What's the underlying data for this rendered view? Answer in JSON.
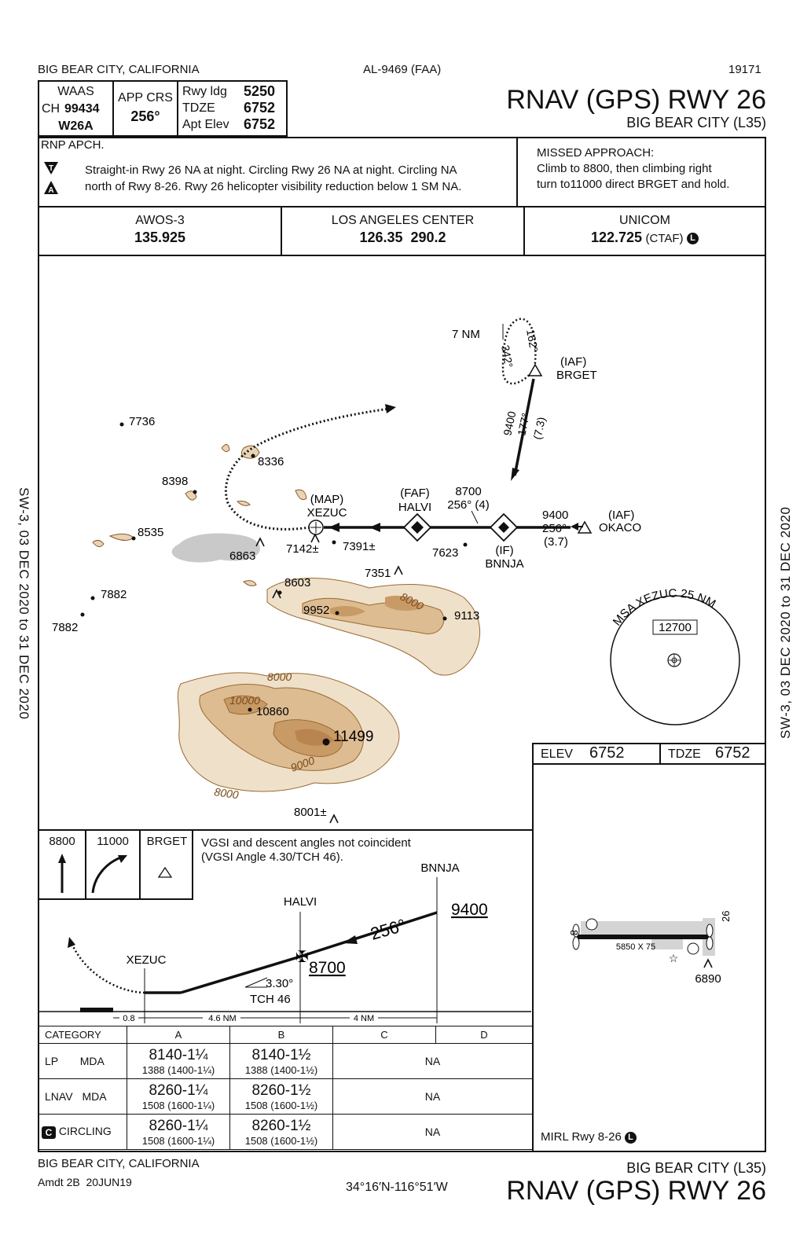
{
  "header": {
    "city": "BIG BEAR CITY, CALIFORNIA",
    "doc_id": "AL-9469 (FAA)",
    "cycle": "19171",
    "procedure": "RNAV (GPS) RWY 26",
    "airport": "BIG BEAR CITY (L35)"
  },
  "briefing": {
    "waas_label": "WAAS",
    "ch_label": "CH",
    "ch_value": "99434",
    "waas_id": "W26A",
    "app_crs_label": "APP CRS",
    "app_crs_value": "256°",
    "rwy_ldg_label": "Rwy ldg",
    "rwy_ldg_value": "5250",
    "tdze_label": "TDZE",
    "tdze_value": "6752",
    "apt_elev_label": "Apt Elev",
    "apt_elev_value": "6752",
    "rnp_apch": "RNP APCH.",
    "notes_line1": "Straight-in Rwy 26 NA at night.  Circling Rwy 26 NA at night.  Circling NA",
    "notes_line2": "north of Rwy 8-26.  Rwy 26 helicopter visibility reduction below 1 SM NA.",
    "missed_title": "MISSED APPROACH:",
    "missed_line1": "Climb to 8800, then climbing right",
    "missed_line2": "turn to11000 direct BRGET and hold."
  },
  "comms": [
    {
      "name": "AWOS-3",
      "freq": "135.925",
      "suffix": ""
    },
    {
      "name": "LOS ANGELES CENTER",
      "freq": "126.35  290.2",
      "suffix": ""
    },
    {
      "name": "UNICOM",
      "freq": "122.725",
      "suffix": "(CTAF)"
    }
  ],
  "planview": {
    "hold_dist": "7 NM",
    "hold_out": "162°",
    "hold_in": "342°",
    "brget_role": "(IAF)",
    "brget_name": "BRGET",
    "brget_alt": "9400",
    "brget_crs": "177°",
    "brget_dist": "(7.3)",
    "okaco_role": "(IAF)",
    "okaco_name": "OKACO",
    "okaco_alt": "9400",
    "okaco_crs": "256°",
    "okaco_dist": "(3.7)",
    "faf_role": "(FAF)",
    "faf_name": "HALVI",
    "faf_alt": "8700",
    "faf_crs": "256° (4)",
    "if_role": "(IF)",
    "if_name": "BNNJA",
    "map_role": "(MAP)",
    "map_name": "XEZUC",
    "msa_label": "MSA XEZUC 25 NM",
    "msa_alt": "12700",
    "elevations": [
      "7736",
      "8336",
      "8398",
      "8535",
      "6863",
      "7142±",
      "7391±",
      "7623",
      "7351",
      "8603",
      "9952",
      "9113",
      "7882",
      "7882",
      "10860",
      "11499",
      "8001±"
    ],
    "contours": [
      "8000",
      "8000",
      "10000",
      "9000",
      "8000"
    ]
  },
  "profile": {
    "missed_icons": [
      "8800",
      "11000",
      "BRGET"
    ],
    "vgsi_line1": "VGSI and descent angles not coincident",
    "vgsi_line2": "(VGSI Angle 4.30/TCH 46).",
    "bnnja": "BNNJA",
    "bnnja_alt": "9400",
    "halvi": "HALVI",
    "halvi_alt": "8700",
    "xezuc": "XEZUC",
    "crs": "256°",
    "gp": "3.30°",
    "tch": "TCH 46",
    "dist1": "0.8",
    "dist2": "4.6 NM",
    "dist3": "4 NM"
  },
  "airport_sketch": {
    "elev_label": "ELEV",
    "elev_value": "6752",
    "tdze_label": "TDZE",
    "tdze_value": "6752",
    "rwy_left": "8",
    "rwy_right": "26",
    "rwy_dims": "5850 X 75",
    "obstacle": "6890",
    "lighting": "MIRL Rwy 8-26"
  },
  "minimums": {
    "headers": [
      "CATEGORY",
      "A",
      "B",
      "C",
      "D"
    ],
    "rows": [
      {
        "label": "LP",
        "type": "MDA",
        "a_main": "8140-1¼",
        "a_sub": "1388 (1400-1¼)",
        "b_main": "8140-1½",
        "b_sub": "1388 (1400-1½)",
        "cd": "NA"
      },
      {
        "label": "LNAV",
        "type": "MDA",
        "a_main": "8260-1¼",
        "a_sub": "1508 (1600-1¼)",
        "b_main": "8260-1½",
        "b_sub": "1508 (1600-1½)",
        "cd": "NA"
      },
      {
        "label": "CIRCLING",
        "type": "",
        "a_main": "8260-1¼",
        "a_sub": "1508 (1600-1¼)",
        "b_main": "8260-1½",
        "b_sub": "1508 (1600-1½)",
        "cd": "NA"
      }
    ]
  },
  "footer": {
    "city": "BIG BEAR CITY, CALIFORNIA",
    "amdt": "Amdt 2B  20JUN19",
    "coords": "34°16′N-116°51′W",
    "airport": "BIG BEAR CITY (L35)",
    "procedure": "RNAV (GPS) RWY 26"
  },
  "side_text": {
    "left": "SW-3,  03 DEC 2020  to  31 DEC 2020",
    "right": "SW-3,  03 DEC 2020  to  31 DEC 2020"
  },
  "symbols": {
    "t_note": "T",
    "a_note": "A",
    "lighting": "L",
    "circling": "C"
  }
}
